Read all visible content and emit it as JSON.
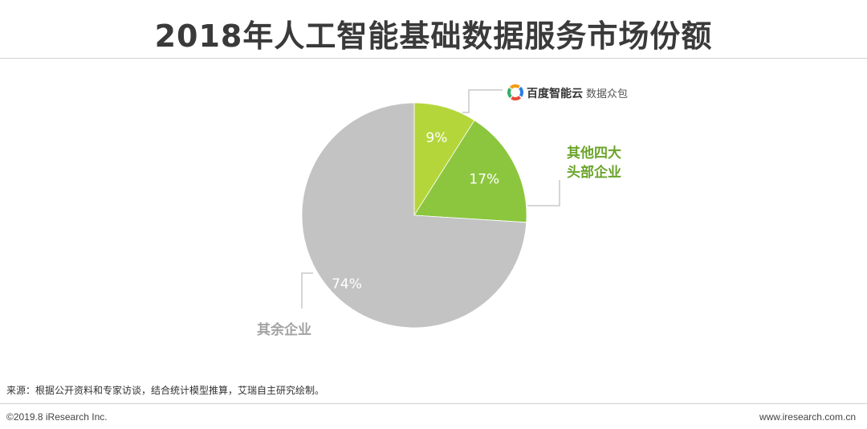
{
  "title": "2018年人工智能基础数据服务市场份额",
  "chart_data": {
    "type": "pie",
    "start_angle_deg": 0,
    "direction": "clockwise",
    "slices": [
      {
        "label": "百度智能云 数据众包",
        "brand": "百度智能云",
        "brand_suffix": "数据众包",
        "value": 9,
        "value_label": "9%",
        "color": "#b5d63b"
      },
      {
        "label": "其他四大头部企业",
        "label_lines": [
          "其他四大",
          "头部企业"
        ],
        "value": 17,
        "value_label": "17%",
        "color": "#8cc63f"
      },
      {
        "label": "其余企业",
        "value": 74,
        "value_label": "74%",
        "color": "#c3c3c3"
      }
    ],
    "label_colors": {
      "other_four": "#6aa42a",
      "remaining": "#a3a3a3",
      "leader_line": "#c8c8c8"
    }
  },
  "brand_logo_colors": [
    "#2a7de1",
    "#e84c3d",
    "#32b16c",
    "#f39c12"
  ],
  "source": "来源：根据公开资料和专家访谈，结合统计模型推算，艾瑞自主研究绘制。",
  "footer": {
    "copyright": "©2019.8 iResearch Inc.",
    "site": "www.iresearch.com.cn"
  }
}
